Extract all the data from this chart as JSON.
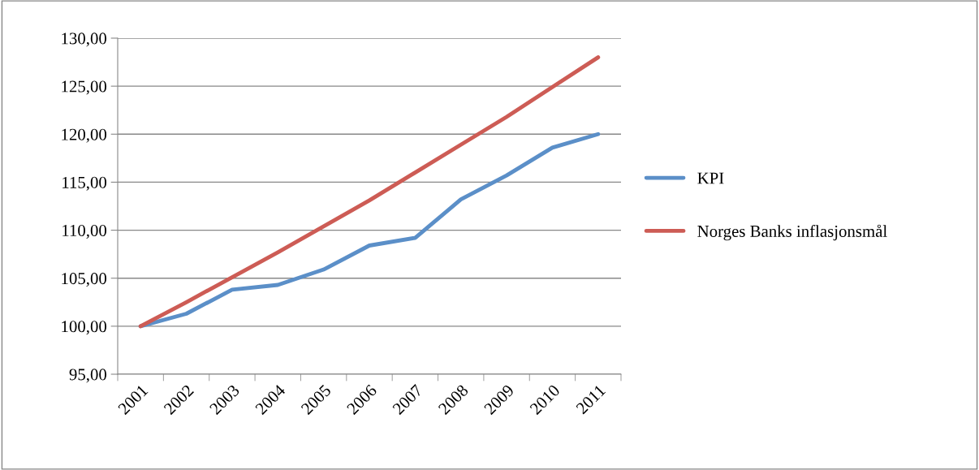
{
  "chart_data": {
    "type": "line",
    "categories": [
      "2001",
      "2002",
      "2003",
      "2004",
      "2005",
      "2006",
      "2007",
      "2008",
      "2009",
      "2010",
      "2011"
    ],
    "series": [
      {
        "name": "KPI",
        "color": "#5b8fc8",
        "values": [
          100.0,
          101.3,
          103.8,
          104.3,
          105.9,
          108.4,
          109.2,
          113.2,
          115.7,
          118.6,
          120.0
        ]
      },
      {
        "name": "Norges Banks inflasjonsmål",
        "color": "#cd5c55",
        "values": [
          100.0,
          102.5,
          105.1,
          107.7,
          110.4,
          113.1,
          116.0,
          118.9,
          121.8,
          124.9,
          128.0
        ]
      }
    ],
    "ylim": [
      95,
      130
    ],
    "yticks": [
      {
        "value": 95,
        "label": "95,00"
      },
      {
        "value": 100,
        "label": "100,00"
      },
      {
        "value": 105,
        "label": "105,00"
      },
      {
        "value": 110,
        "label": "110,00"
      },
      {
        "value": 115,
        "label": "115,00"
      },
      {
        "value": 120,
        "label": "120,00"
      },
      {
        "value": 125,
        "label": "125,00"
      },
      {
        "value": 130,
        "label": "130,00"
      }
    ],
    "grid": "y",
    "legend": "right",
    "marker": "none",
    "line_style": "solid"
  }
}
